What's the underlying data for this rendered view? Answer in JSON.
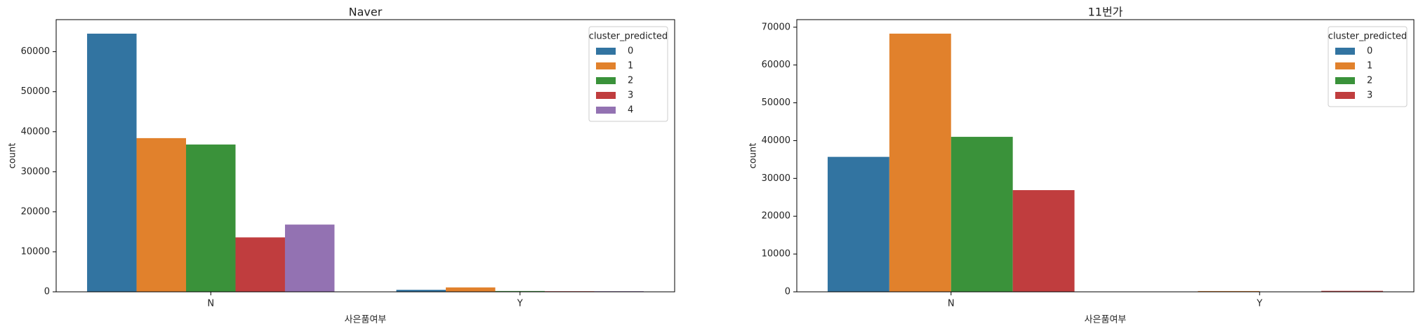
{
  "chart_data": [
    {
      "type": "bar",
      "title": "Naver",
      "xlabel": "사은품여부",
      "ylabel": "count",
      "categories": [
        "N",
        "Y"
      ],
      "series": [
        {
          "name": "0",
          "color": "#3274a1",
          "values": [
            64500,
            500
          ]
        },
        {
          "name": "1",
          "color": "#e1812c",
          "values": [
            38400,
            1100
          ]
        },
        {
          "name": "2",
          "color": "#3a923a",
          "values": [
            36800,
            200
          ]
        },
        {
          "name": "3",
          "color": "#c03d3e",
          "values": [
            13600,
            150
          ]
        },
        {
          "name": "4",
          "color": "#9372b2",
          "values": [
            16800,
            150
          ]
        }
      ],
      "ylim": [
        0,
        68000
      ],
      "yticks": [
        0,
        10000,
        20000,
        30000,
        40000,
        50000,
        60000
      ],
      "legend_title": "cluster_predicted",
      "legend": "upper right"
    },
    {
      "type": "bar",
      "title": "11번가",
      "xlabel": "사은품여부",
      "ylabel": "count",
      "categories": [
        "N",
        "Y"
      ],
      "series": [
        {
          "name": "0",
          "color": "#3274a1",
          "values": [
            35700,
            0
          ]
        },
        {
          "name": "1",
          "color": "#e1812c",
          "values": [
            68300,
            200
          ]
        },
        {
          "name": "2",
          "color": "#3a923a",
          "values": [
            41000,
            0
          ]
        },
        {
          "name": "3",
          "color": "#c03d3e",
          "values": [
            26900,
            250
          ]
        }
      ],
      "ylim": [
        0,
        72000
      ],
      "yticks": [
        0,
        10000,
        20000,
        30000,
        40000,
        50000,
        60000,
        70000
      ],
      "legend_title": "cluster_predicted",
      "legend": "upper right"
    }
  ]
}
